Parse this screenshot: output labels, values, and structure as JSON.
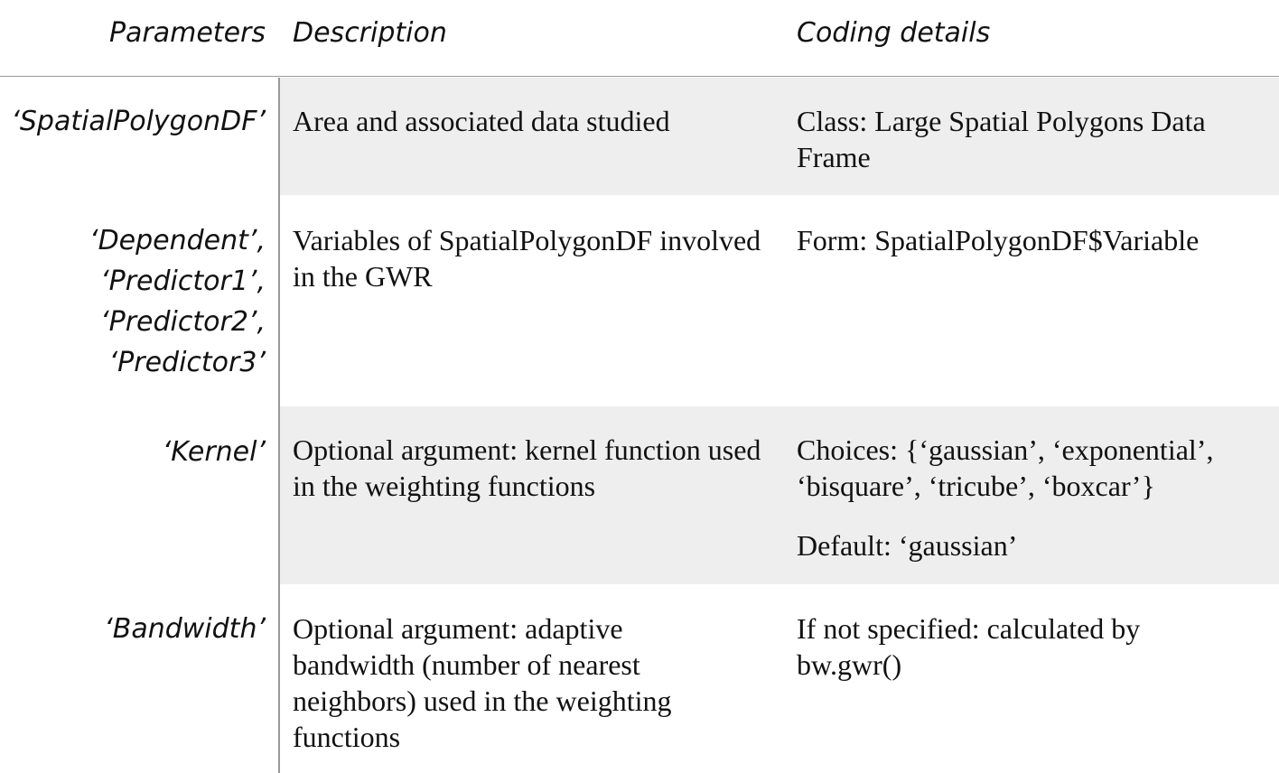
{
  "table": {
    "headers": {
      "parameters": "Parameters",
      "description": "Description",
      "coding_details": "Coding details"
    },
    "rows": [
      {
        "parameter_lines": [
          "‘SpatialPolygonDF’"
        ],
        "description": "Area and associated data studied",
        "coding": [
          "Class: Large Spatial Polygons Data Frame"
        ]
      },
      {
        "parameter_lines": [
          "‘Dependent’,",
          "‘Predictor1’,",
          "‘Predictor2’,",
          "‘Predictor3’"
        ],
        "description": "Variables of SpatialPolygonDF involved in the GWR",
        "coding": [
          "Form: SpatialPolygonDF$Variable"
        ]
      },
      {
        "parameter_lines": [
          "‘Kernel’"
        ],
        "description": "Optional argument: kernel function used in the weighting functions",
        "coding": [
          "Choices: {‘gaussian’, ‘exponential’, ‘bisquare’, ‘tricube’, ‘boxcar’}",
          "Default: ‘gaussian’"
        ]
      },
      {
        "parameter_lines": [
          "‘Bandwidth’"
        ],
        "description": "Optional argument: adaptive bandwidth (number of nearest neighbors) used in the weighting functions",
        "coding": [
          "If not specified: calculated by bw.gwr()"
        ]
      }
    ]
  }
}
